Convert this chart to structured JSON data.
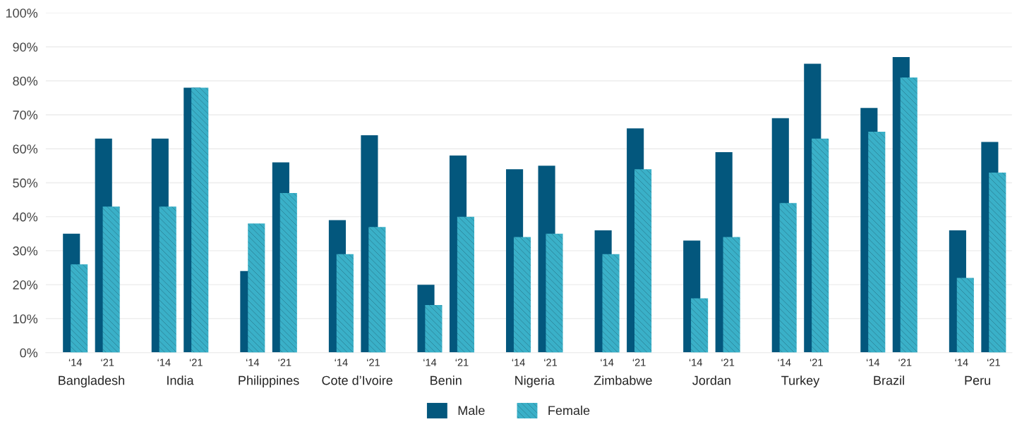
{
  "chart_data": {
    "type": "bar",
    "categories": [
      "‘14",
      "‘21",
      "‘14",
      "‘21",
      "‘14",
      "‘21",
      "‘14",
      "‘21",
      "‘14",
      "‘21",
      "‘14",
      "‘21",
      "‘14",
      "‘21",
      "‘14",
      "‘21",
      "‘14",
      "‘21",
      "‘14",
      "‘21",
      "‘14",
      "‘21"
    ],
    "annotations": [
      "Bangladesh",
      "India",
      "Philippines",
      "Cote d’Ivoire",
      "Benin",
      "Nigeria",
      "Zimbabwe",
      "Jordan",
      "Turkey",
      "Brazil",
      "Peru"
    ],
    "series": [
      {
        "name": "Male",
        "color": "#03577d",
        "values": [
          35,
          63,
          63,
          78,
          24,
          56,
          39,
          64,
          20,
          58,
          54,
          55,
          36,
          66,
          33,
          59,
          69,
          85,
          72,
          87,
          36,
          62
        ]
      },
      {
        "name": "Female",
        "color": "#3ab0c8",
        "values": [
          26,
          43,
          43,
          78,
          38,
          47,
          29,
          37,
          14,
          40,
          34,
          35,
          29,
          54,
          16,
          34,
          44,
          63,
          65,
          81,
          22,
          53
        ]
      }
    ],
    "ylim": [
      0,
      100
    ],
    "yticks": [
      {
        "value": 0,
        "label": "0%"
      },
      {
        "value": 10,
        "label": "10%"
      },
      {
        "value": 20,
        "label": "20%"
      },
      {
        "value": 30,
        "label": "30%"
      },
      {
        "value": 40,
        "label": "40%"
      },
      {
        "value": 50,
        "label": "50%"
      },
      {
        "value": 60,
        "label": "60%"
      },
      {
        "value": 70,
        "label": "70%"
      },
      {
        "value": 80,
        "label": "80%"
      },
      {
        "value": 90,
        "label": "90%"
      },
      {
        "value": 100,
        "label": "100%"
      }
    ],
    "grid": "y",
    "legend": "bottom"
  }
}
